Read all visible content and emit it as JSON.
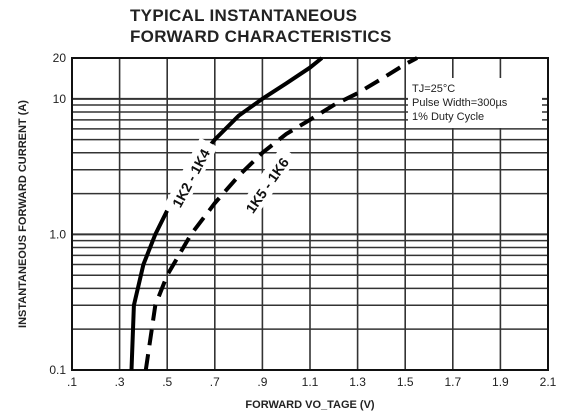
{
  "chart_data": {
    "type": "line",
    "title_line1": "TYPICAL INSTANTANEOUS",
    "title_line2": "FORWARD CHARACTERISTICS",
    "xlabel": "FORWARD VO_TAGE (V)",
    "ylabel": "INSTANTANEOUS FORWARD CURRENT (A)",
    "x_scale": "linear",
    "y_scale": "log",
    "xlim": [
      0.1,
      2.1
    ],
    "ylim": [
      0.1,
      20
    ],
    "x_tick_labels": [
      ".1",
      ".3",
      ".5",
      ".7",
      ".9",
      "1.1",
      "1.3",
      "1.5",
      "1.7",
      "1.9",
      "2.1"
    ],
    "x_tick_values": [
      0.1,
      0.3,
      0.5,
      0.7,
      0.9,
      1.1,
      1.3,
      1.5,
      1.7,
      1.9,
      2.1
    ],
    "y_tick_labels": [
      "0.1",
      "1.0",
      "10",
      "20"
    ],
    "y_tick_values": [
      0.1,
      1,
      10,
      20
    ],
    "grid": true,
    "annotation": [
      "TJ=25°C",
      "Pulse Width=300µs",
      "1% Duty Cycle"
    ],
    "series": [
      {
        "name": "1K2 - 1K4",
        "style": "solid",
        "color": "#000000",
        "points": [
          [
            0.35,
            0.1
          ],
          [
            0.36,
            0.3
          ],
          [
            0.4,
            0.6
          ],
          [
            0.45,
            1.0
          ],
          [
            0.5,
            1.5
          ],
          [
            0.6,
            3.0
          ],
          [
            0.7,
            5.0
          ],
          [
            0.8,
            7.5
          ],
          [
            0.9,
            10
          ],
          [
            1.0,
            13
          ],
          [
            1.1,
            17
          ],
          [
            1.15,
            20
          ]
        ]
      },
      {
        "name": "1K5 - 1K6",
        "style": "dashed",
        "color": "#000000",
        "points": [
          [
            0.41,
            0.1
          ],
          [
            0.45,
            0.3
          ],
          [
            0.5,
            0.5
          ],
          [
            0.6,
            1.0
          ],
          [
            0.7,
            1.7
          ],
          [
            0.8,
            2.7
          ],
          [
            0.9,
            4.0
          ],
          [
            1.0,
            5.5
          ],
          [
            1.1,
            7.0
          ],
          [
            1.2,
            9.0
          ],
          [
            1.3,
            11
          ],
          [
            1.4,
            14
          ],
          [
            1.5,
            18
          ],
          [
            1.55,
            20
          ]
        ]
      }
    ]
  }
}
